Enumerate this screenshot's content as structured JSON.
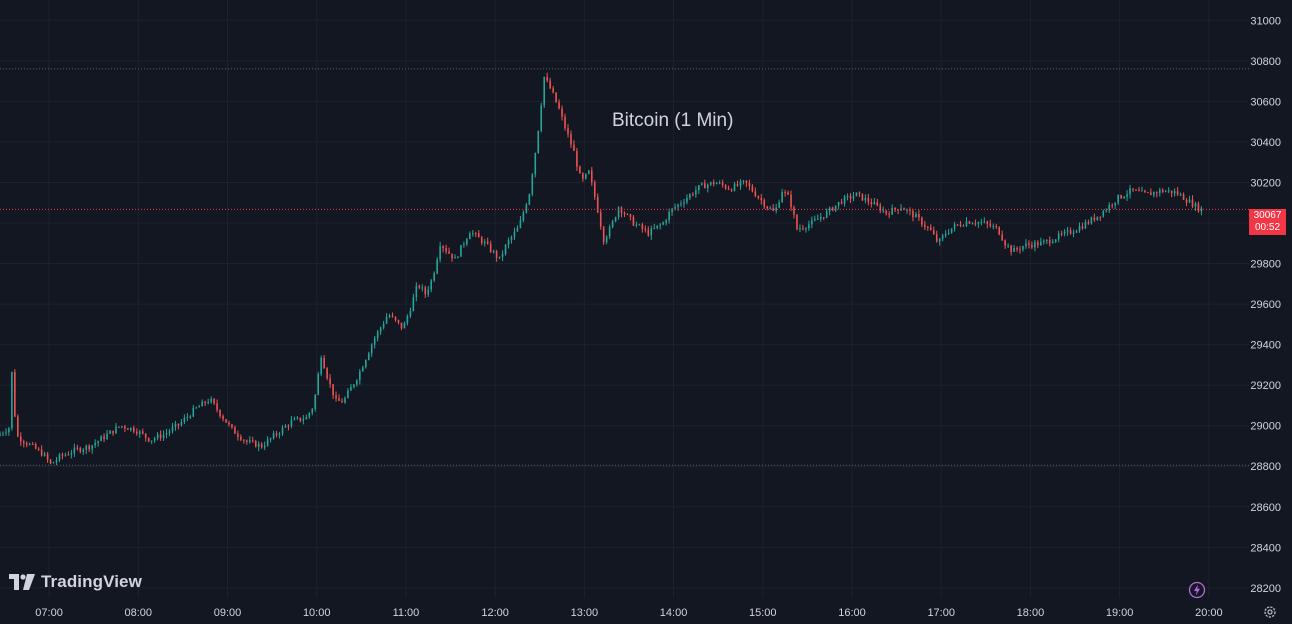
{
  "chart_data": {
    "type": "candlestick",
    "title": "Bitcoin (1 Min)",
    "xlabel": "",
    "ylabel": "",
    "ylim": [
      28150,
      31100
    ],
    "x_range": [
      "06:27",
      "20:27"
    ],
    "y_ticks": [
      31000,
      30800,
      30600,
      30400,
      30200,
      30000,
      29800,
      29600,
      29400,
      29200,
      29000,
      28800,
      28600,
      28400,
      28200
    ],
    "x_ticks": [
      "07:00",
      "08:00",
      "09:00",
      "10:00",
      "11:00",
      "12:00",
      "13:00",
      "14:00",
      "15:00",
      "16:00",
      "17:00",
      "18:00",
      "19:00",
      "20:00"
    ],
    "last_price": 30067,
    "last_price_label": "30067",
    "countdown": "00:52",
    "reference_lines": [
      30760,
      28805
    ],
    "series": [
      {
        "start": "06:27",
        "end": "19:56",
        "points": [
          [
            "06:27",
            28950
          ],
          [
            "06:35",
            28990
          ],
          [
            "06:37",
            29260
          ],
          [
            "06:40",
            28950
          ],
          [
            "06:50",
            28900
          ],
          [
            "06:58",
            28860
          ],
          [
            "07:03",
            28810
          ],
          [
            "07:10",
            28850
          ],
          [
            "07:20",
            28880
          ],
          [
            "07:30",
            28900
          ],
          [
            "07:40",
            28950
          ],
          [
            "07:50",
            29000
          ],
          [
            "08:00",
            28980
          ],
          [
            "08:10",
            28930
          ],
          [
            "08:20",
            28960
          ],
          [
            "08:30",
            29010
          ],
          [
            "08:40",
            29080
          ],
          [
            "08:50",
            29130
          ],
          [
            "08:57",
            29060
          ],
          [
            "09:05",
            28980
          ],
          [
            "09:15",
            28920
          ],
          [
            "09:25",
            28900
          ],
          [
            "09:35",
            28960
          ],
          [
            "09:45",
            29020
          ],
          [
            "09:55",
            29040
          ],
          [
            "10:00",
            29100
          ],
          [
            "10:05",
            29350
          ],
          [
            "10:10",
            29220
          ],
          [
            "10:15",
            29120
          ],
          [
            "10:20",
            29120
          ],
          [
            "10:30",
            29250
          ],
          [
            "10:40",
            29420
          ],
          [
            "10:50",
            29550
          ],
          [
            "11:00",
            29480
          ],
          [
            "11:05",
            29580
          ],
          [
            "11:10",
            29700
          ],
          [
            "11:15",
            29650
          ],
          [
            "11:20",
            29730
          ],
          [
            "11:25",
            29900
          ],
          [
            "11:35",
            29820
          ],
          [
            "11:45",
            29960
          ],
          [
            "11:55",
            29900
          ],
          [
            "12:05",
            29820
          ],
          [
            "12:10",
            29900
          ],
          [
            "12:18",
            29980
          ],
          [
            "12:25",
            30150
          ],
          [
            "12:30",
            30400
          ],
          [
            "12:35",
            30720
          ],
          [
            "12:40",
            30650
          ],
          [
            "12:45",
            30560
          ],
          [
            "12:50",
            30450
          ],
          [
            "12:55",
            30350
          ],
          [
            "13:00",
            30200
          ],
          [
            "13:05",
            30250
          ],
          [
            "13:10",
            30100
          ],
          [
            "13:15",
            29920
          ],
          [
            "13:20",
            29980
          ],
          [
            "13:25",
            30080
          ],
          [
            "13:35",
            30000
          ],
          [
            "13:45",
            29950
          ],
          [
            "13:55",
            30000
          ],
          [
            "14:00",
            30060
          ],
          [
            "14:10",
            30120
          ],
          [
            "14:20",
            30180
          ],
          [
            "14:30",
            30200
          ],
          [
            "14:40",
            30170
          ],
          [
            "14:50",
            30200
          ],
          [
            "15:00",
            30120
          ],
          [
            "15:05",
            30080
          ],
          [
            "15:10",
            30050
          ],
          [
            "15:15",
            30160
          ],
          [
            "15:20",
            30120
          ],
          [
            "15:25",
            29970
          ],
          [
            "15:35",
            30000
          ],
          [
            "15:45",
            30050
          ],
          [
            "15:55",
            30110
          ],
          [
            "16:05",
            30140
          ],
          [
            "16:15",
            30100
          ],
          [
            "16:25",
            30050
          ],
          [
            "16:35",
            30080
          ],
          [
            "16:45",
            30030
          ],
          [
            "16:55",
            29960
          ],
          [
            "17:00",
            29900
          ],
          [
            "17:05",
            29950
          ],
          [
            "17:10",
            29980
          ],
          [
            "17:20",
            30010
          ],
          [
            "17:30",
            30000
          ],
          [
            "17:40",
            29970
          ],
          [
            "17:45",
            29900
          ],
          [
            "17:50",
            29860
          ],
          [
            "17:58",
            29890
          ],
          [
            "18:10",
            29900
          ],
          [
            "18:20",
            29930
          ],
          [
            "18:30",
            29960
          ],
          [
            "18:40",
            30000
          ],
          [
            "18:50",
            30050
          ],
          [
            "19:00",
            30120
          ],
          [
            "19:10",
            30160
          ],
          [
            "19:20",
            30140
          ],
          [
            "19:30",
            30160
          ],
          [
            "19:40",
            30150
          ],
          [
            "19:50",
            30100
          ],
          [
            "19:56",
            30067
          ]
        ]
      }
    ],
    "colors": {
      "background": "#131722",
      "up": "#26a69a",
      "down": "#ef5350",
      "grid": "#1e222d",
      "axis_text": "#d1d4dc",
      "reference_line": "#5a5e6b",
      "last_price_line": "#f23645",
      "badge": "#f23645"
    }
  },
  "brand": {
    "name": "TradingView"
  },
  "icons": {
    "flash": "flash-icon",
    "settings": "gear-icon"
  }
}
